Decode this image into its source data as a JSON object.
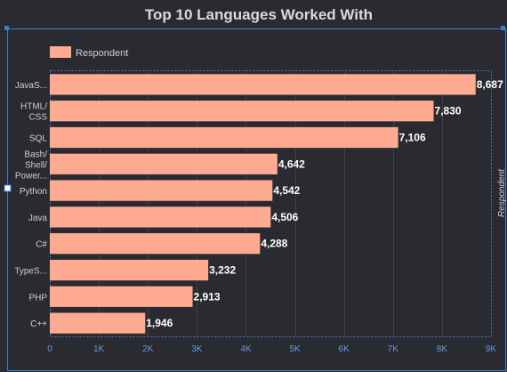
{
  "chart_data": {
    "type": "bar",
    "orientation": "horizontal",
    "title": "Top 10 Languages Worked With",
    "categories": [
      [
        "JavaS..."
      ],
      [
        "HTML/",
        "CSS"
      ],
      [
        "SQL"
      ],
      [
        "Bash/",
        "Shell/",
        "Power..."
      ],
      [
        "Python"
      ],
      [
        "Java"
      ],
      [
        "C#"
      ],
      [
        "TypeS..."
      ],
      [
        "PHP"
      ],
      [
        "C++"
      ]
    ],
    "series": [
      {
        "name": "Respondent",
        "values": [
          8687,
          7830,
          7106,
          4642,
          4542,
          4506,
          4288,
          3232,
          2913,
          1946
        ],
        "value_labels": [
          "8,687",
          "7,830",
          "7,106",
          "4,642",
          "4,542",
          "4,506",
          "4,288",
          "3,232",
          "2,913",
          "1,946"
        ]
      }
    ],
    "xlim": [
      0,
      9000
    ],
    "x_ticks": [
      {
        "value": 0,
        "label": "0"
      },
      {
        "value": 1000,
        "label": "1K"
      },
      {
        "value": 2000,
        "label": "2K"
      },
      {
        "value": 3000,
        "label": "3K"
      },
      {
        "value": 4000,
        "label": "4K"
      },
      {
        "value": 5000,
        "label": "5K"
      },
      {
        "value": 6000,
        "label": "6K"
      },
      {
        "value": 7000,
        "label": "7K"
      },
      {
        "value": 8000,
        "label": "8K"
      },
      {
        "value": 9000,
        "label": "9K"
      }
    ],
    "right_axis_title": "Respondent",
    "legend_position": "top-left",
    "grid": true,
    "colors": {
      "bar": "#ffab91",
      "background": "#2a2b30",
      "grid": "#3f4046",
      "tick_text": "#6a9ad8",
      "selection": "#3b7ddd"
    }
  }
}
